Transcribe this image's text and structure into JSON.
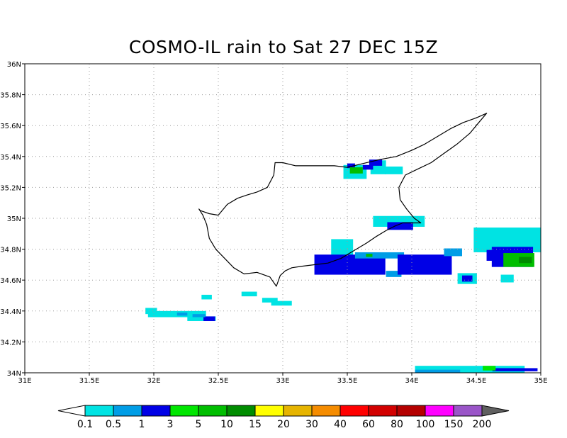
{
  "title": "COSMO-IL rain to Sat 27 DEC 15Z",
  "map": {
    "lon_range": [
      31,
      35
    ],
    "lat_range": [
      34,
      36
    ],
    "x_ticks": [
      {
        "value": 31,
        "label": "31E"
      },
      {
        "value": 31.5,
        "label": "31.5E"
      },
      {
        "value": 32,
        "label": "32E"
      },
      {
        "value": 32.5,
        "label": "32.5E"
      },
      {
        "value": 33,
        "label": "33E"
      },
      {
        "value": 33.5,
        "label": "33.5E"
      },
      {
        "value": 34,
        "label": "34E"
      },
      {
        "value": 34.5,
        "label": "34.5E"
      },
      {
        "value": 35,
        "label": "35E"
      }
    ],
    "y_ticks": [
      {
        "value": 34,
        "label": "34N"
      },
      {
        "value": 34.2,
        "label": "34.2N"
      },
      {
        "value": 34.4,
        "label": "34.4N"
      },
      {
        "value": 34.6,
        "label": "34.6N"
      },
      {
        "value": 34.8,
        "label": "34.8N"
      },
      {
        "value": 35,
        "label": "35N"
      },
      {
        "value": 35.2,
        "label": "35.2N"
      },
      {
        "value": 35.4,
        "label": "35.4N"
      },
      {
        "value": 35.6,
        "label": "35.6N"
      },
      {
        "value": 35.8,
        "label": "35.8N"
      },
      {
        "value": 36,
        "label": "36N"
      }
    ],
    "grid": "dotted",
    "coastline": [
      [
        32.36,
        35.05
      ],
      [
        32.43,
        35.03
      ],
      [
        32.5,
        35.02
      ],
      [
        32.57,
        35.09
      ],
      [
        32.65,
        35.13
      ],
      [
        32.72,
        35.15
      ],
      [
        32.8,
        35.17
      ],
      [
        32.88,
        35.2
      ],
      [
        32.93,
        35.28
      ],
      [
        32.94,
        35.36
      ],
      [
        33.0,
        35.36
      ],
      [
        33.1,
        35.34
      ],
      [
        33.25,
        35.34
      ],
      [
        33.4,
        35.34
      ],
      [
        33.5,
        35.33
      ],
      [
        33.6,
        35.35
      ],
      [
        33.75,
        35.38
      ],
      [
        33.88,
        35.4
      ],
      [
        34.0,
        35.44
      ],
      [
        34.1,
        35.48
      ],
      [
        34.2,
        35.53
      ],
      [
        34.3,
        35.58
      ],
      [
        34.4,
        35.62
      ],
      [
        34.5,
        35.65
      ],
      [
        34.58,
        35.68
      ],
      [
        34.52,
        35.62
      ],
      [
        34.45,
        35.55
      ],
      [
        34.35,
        35.48
      ],
      [
        34.25,
        35.42
      ],
      [
        34.15,
        35.36
      ],
      [
        34.05,
        35.32
      ],
      [
        33.95,
        35.28
      ],
      [
        33.9,
        35.2
      ],
      [
        33.91,
        35.12
      ],
      [
        33.96,
        35.06
      ],
      [
        34.02,
        35.0
      ],
      [
        34.07,
        34.97
      ],
      [
        34.02,
        34.97
      ],
      [
        33.93,
        34.97
      ],
      [
        33.87,
        34.95
      ],
      [
        33.8,
        34.92
      ],
      [
        33.72,
        34.88
      ],
      [
        33.65,
        34.84
      ],
      [
        33.57,
        34.8
      ],
      [
        33.45,
        34.74
      ],
      [
        33.35,
        34.71
      ],
      [
        33.25,
        34.7
      ],
      [
        33.15,
        34.69
      ],
      [
        33.07,
        34.68
      ],
      [
        33.02,
        34.66
      ],
      [
        32.98,
        34.63
      ],
      [
        32.95,
        34.56
      ],
      [
        32.9,
        34.62
      ],
      [
        32.8,
        34.65
      ],
      [
        32.7,
        34.64
      ],
      [
        32.62,
        34.68
      ],
      [
        32.55,
        34.74
      ],
      [
        32.48,
        34.8
      ],
      [
        32.43,
        34.87
      ],
      [
        32.41,
        34.96
      ],
      [
        32.38,
        35.02
      ],
      [
        32.35,
        35.06
      ]
    ]
  },
  "legend": {
    "labels": [
      "0.1",
      "0.5",
      "1",
      "3",
      "5",
      "10",
      "15",
      "20",
      "30",
      "40",
      "60",
      "80",
      "100",
      "150",
      "200"
    ],
    "colors": [
      "#00e3e3",
      "#009de6",
      "#0000e6",
      "#00e600",
      "#00be00",
      "#008c00",
      "#ffff00",
      "#e6b400",
      "#f58c00",
      "#ff0000",
      "#d20000",
      "#b40000",
      "#ff00ff",
      "#9a55c8",
      "#606060"
    ]
  },
  "rain_cells": [
    {
      "lon": 33.56,
      "lat": 35.3,
      "w": 0.18,
      "h": 0.09,
      "level": 0
    },
    {
      "lon": 33.74,
      "lat": 35.33,
      "w": 0.12,
      "h": 0.09,
      "level": 0
    },
    {
      "lon": 33.86,
      "lat": 35.31,
      "w": 0.14,
      "h": 0.05,
      "level": 0
    },
    {
      "lon": 33.53,
      "lat": 35.34,
      "w": 0.06,
      "h": 0.03,
      "level": 2
    },
    {
      "lon": 33.72,
      "lat": 35.36,
      "w": 0.1,
      "h": 0.04,
      "level": 2
    },
    {
      "lon": 33.66,
      "lat": 35.33,
      "w": 0.08,
      "h": 0.03,
      "level": 2
    },
    {
      "lon": 33.57,
      "lat": 35.31,
      "w": 0.1,
      "h": 0.04,
      "level": 4
    },
    {
      "lon": 33.46,
      "lat": 34.8,
      "w": 0.17,
      "h": 0.13,
      "level": 0
    },
    {
      "lon": 33.9,
      "lat": 34.98,
      "w": 0.4,
      "h": 0.07,
      "level": 0
    },
    {
      "lon": 33.6,
      "lat": 34.72,
      "w": 0.2,
      "h": 0.05,
      "level": 0
    },
    {
      "lon": 34.2,
      "lat": 34.72,
      "w": 0.2,
      "h": 0.05,
      "level": 0
    },
    {
      "lon": 33.52,
      "lat": 34.7,
      "w": 0.55,
      "h": 0.13,
      "level": 2
    },
    {
      "lon": 33.91,
      "lat": 34.95,
      "w": 0.2,
      "h": 0.05,
      "level": 2
    },
    {
      "lon": 33.75,
      "lat": 34.76,
      "w": 0.38,
      "h": 0.04,
      "level": 1
    },
    {
      "lon": 33.86,
      "lat": 34.64,
      "w": 0.12,
      "h": 0.04,
      "level": 1
    },
    {
      "lon": 33.67,
      "lat": 34.76,
      "w": 0.05,
      "h": 0.02,
      "level": 4
    },
    {
      "lon": 34.1,
      "lat": 34.7,
      "w": 0.42,
      "h": 0.13,
      "level": 2
    },
    {
      "lon": 34.32,
      "lat": 34.78,
      "w": 0.14,
      "h": 0.05,
      "level": 1
    },
    {
      "lon": 34.43,
      "lat": 34.61,
      "w": 0.15,
      "h": 0.07,
      "level": 0
    },
    {
      "lon": 34.43,
      "lat": 34.61,
      "w": 0.08,
      "h": 0.04,
      "level": 2
    },
    {
      "lon": 34.74,
      "lat": 34.86,
      "w": 0.52,
      "h": 0.16,
      "level": 0
    },
    {
      "lon": 34.64,
      "lat": 34.76,
      "w": 0.12,
      "h": 0.07,
      "level": 2
    },
    {
      "lon": 34.78,
      "lat": 34.75,
      "w": 0.32,
      "h": 0.13,
      "level": 2
    },
    {
      "lon": 34.83,
      "lat": 34.73,
      "w": 0.24,
      "h": 0.09,
      "level": 4
    },
    {
      "lon": 34.88,
      "lat": 34.73,
      "w": 0.1,
      "h": 0.04,
      "level": 5
    },
    {
      "lon": 34.74,
      "lat": 34.61,
      "w": 0.1,
      "h": 0.05,
      "level": 0
    },
    {
      "lon": 32.18,
      "lat": 34.38,
      "w": 0.45,
      "h": 0.04,
      "level": 0
    },
    {
      "lon": 31.98,
      "lat": 34.4,
      "w": 0.09,
      "h": 0.04,
      "level": 0
    },
    {
      "lon": 32.37,
      "lat": 34.35,
      "w": 0.22,
      "h": 0.03,
      "level": 0
    },
    {
      "lon": 32.22,
      "lat": 34.38,
      "w": 0.08,
      "h": 0.02,
      "level": 1
    },
    {
      "lon": 32.43,
      "lat": 34.35,
      "w": 0.09,
      "h": 0.03,
      "level": 2
    },
    {
      "lon": 32.35,
      "lat": 34.37,
      "w": 0.1,
      "h": 0.02,
      "level": 1
    },
    {
      "lon": 32.99,
      "lat": 34.45,
      "w": 0.16,
      "h": 0.03,
      "level": 0
    },
    {
      "lon": 32.74,
      "lat": 34.51,
      "w": 0.12,
      "h": 0.03,
      "level": 0
    },
    {
      "lon": 32.9,
      "lat": 34.47,
      "w": 0.12,
      "h": 0.03,
      "level": 0
    },
    {
      "lon": 32.41,
      "lat": 34.49,
      "w": 0.08,
      "h": 0.03,
      "level": 0
    },
    {
      "lon": 34.45,
      "lat": 34.02,
      "w": 0.85,
      "h": 0.05,
      "level": 0
    },
    {
      "lon": 34.8,
      "lat": 34.02,
      "w": 0.35,
      "h": 0.02,
      "level": 2
    },
    {
      "lon": 34.2,
      "lat": 34.01,
      "w": 0.35,
      "h": 0.02,
      "level": 1
    },
    {
      "lon": 34.6,
      "lat": 34.03,
      "w": 0.1,
      "h": 0.03,
      "level": 3
    }
  ]
}
